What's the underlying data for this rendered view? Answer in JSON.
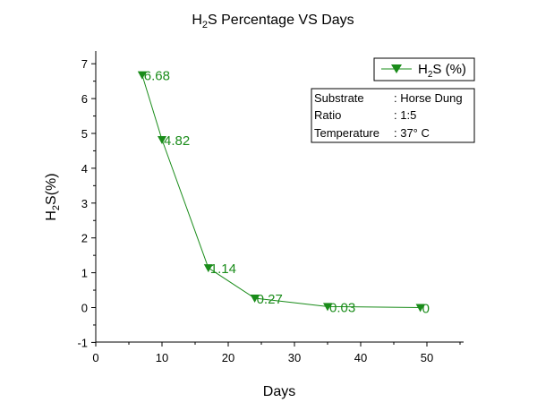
{
  "chart_data": {
    "type": "line",
    "title": {
      "main": "H",
      "sub": "2",
      "rest": "S Percentage VS Days"
    },
    "xlabel": "Days",
    "ylabel": {
      "main": "H",
      "sub": "2",
      "rest": "S(%)"
    },
    "xlim": [
      0,
      55
    ],
    "ylim": [
      -1,
      7.5
    ],
    "xticks": [
      0,
      10,
      20,
      30,
      40,
      50
    ],
    "yticks": [
      -1,
      0,
      1,
      2,
      3,
      4,
      5,
      6,
      7
    ],
    "series": [
      {
        "name": {
          "main": "H",
          "sub": "2",
          "rest": "S (%)"
        },
        "color": "#1a8c1a",
        "marker": "triangle-down",
        "x": [
          7,
          10,
          17,
          24,
          35,
          49
        ],
        "y": [
          6.68,
          4.82,
          1.14,
          0.27,
          0.03,
          0
        ],
        "labels": [
          "6.68",
          "4.82",
          "1.14",
          "0.27",
          "0.03",
          "0"
        ]
      }
    ],
    "legend_position": "top-right",
    "annotation": {
      "rows": [
        {
          "key": "Substrate",
          "value": ": Horse Dung"
        },
        {
          "key": "Ratio",
          "value": ": 1:5"
        },
        {
          "key": "Temperature",
          "value": ": 37° C"
        }
      ]
    },
    "grid": false
  }
}
